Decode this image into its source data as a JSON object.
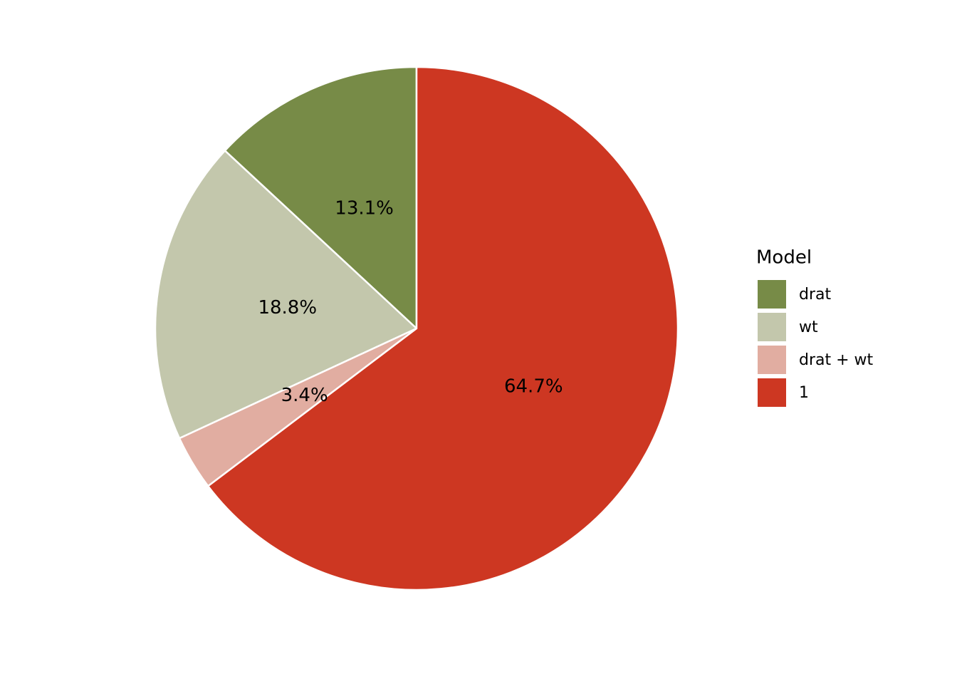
{
  "chart_data": {
    "type": "pie",
    "categories": [
      "drat",
      "wt",
      "drat + wt",
      "1"
    ],
    "values": [
      13.1,
      18.8,
      3.4,
      64.7
    ],
    "value_labels": [
      "13.1%",
      "18.8%",
      "3.4%",
      "64.7%"
    ],
    "colors": [
      "#778b47",
      "#c3c7ac",
      "#e1ada1",
      "#cd3722"
    ],
    "legend_title": "Model",
    "legend_position": "right"
  }
}
